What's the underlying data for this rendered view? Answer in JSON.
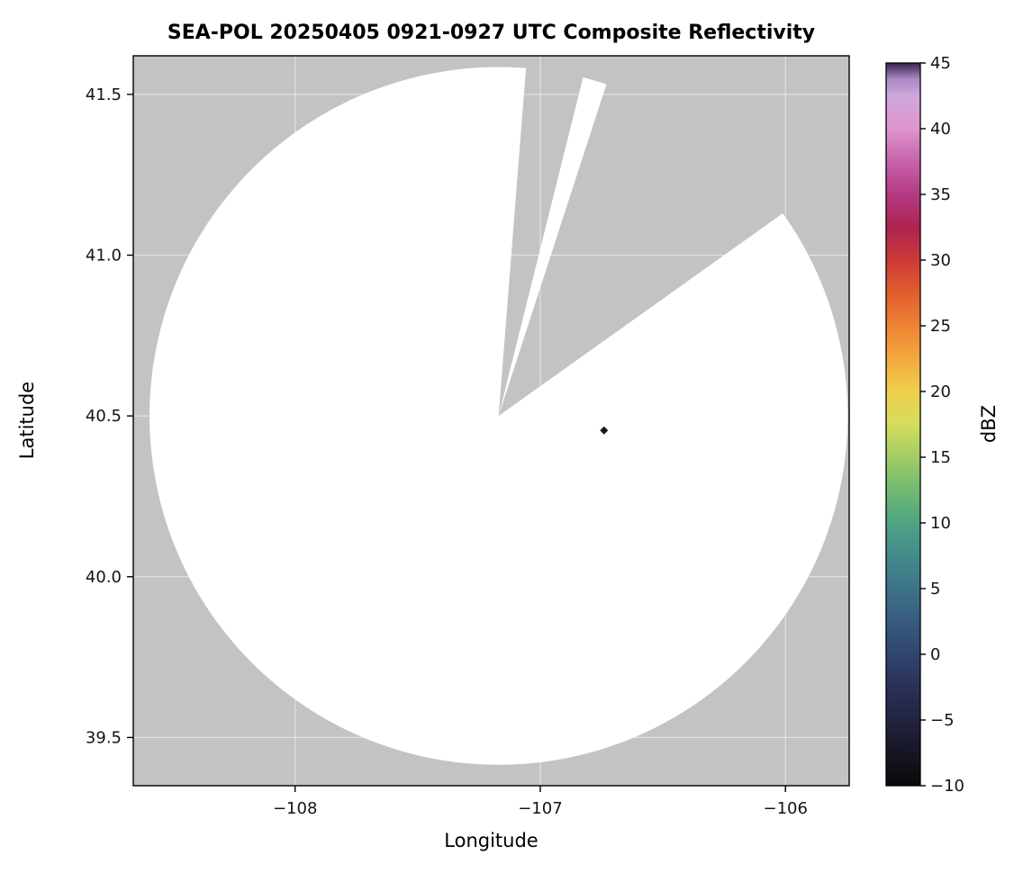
{
  "chart_data": {
    "type": "heatmap",
    "title": "SEA-POL 20250405 0921-0927 UTC Composite Reflectivity",
    "xlabel": "Longitude",
    "ylabel": "Latitude",
    "xlim": [
      -108.66,
      -105.74
    ],
    "ylim": [
      39.35,
      41.62
    ],
    "xticks": [
      {
        "value": -108,
        "label": "−108"
      },
      {
        "value": -107,
        "label": "−107"
      },
      {
        "value": -106,
        "label": "−106"
      }
    ],
    "yticks": [
      {
        "value": 39.5,
        "label": "39.5"
      },
      {
        "value": 40.0,
        "label": "40.0"
      },
      {
        "value": 40.5,
        "label": "40.5"
      },
      {
        "value": 41.0,
        "label": "41.0"
      },
      {
        "value": 41.5,
        "label": "41.5"
      }
    ],
    "grid": true,
    "colors": {
      "nodata_gray": "#c3c3c3",
      "coverage_white": "#ffffff",
      "spine_black": "#000000",
      "gridline": "#ffffff"
    },
    "radar_coverage": {
      "description": "White disk = SEA-POL radar scan coverage; gray = no data, including two blocked azimuth sectors cut into the disk",
      "center_lon": -107.17,
      "center_lat": 40.5,
      "radius_deg_lat": 1.085,
      "blocked_sectors_azimuth_deg": [
        {
          "start": 4.5,
          "end": 14
        },
        {
          "start": 18,
          "end": 54.5
        }
      ]
    },
    "echoes": [
      {
        "lon": -106.74,
        "lat": 40.455,
        "dbz": -6,
        "color": "#15151f",
        "shape": "diamond"
      }
    ],
    "colorbar": {
      "label": "dBZ",
      "min": -10,
      "max": 45,
      "ticks": [
        {
          "value": 45,
          "label": "45"
        },
        {
          "value": 40,
          "label": "40"
        },
        {
          "value": 35,
          "label": "35"
        },
        {
          "value": 30,
          "label": "30"
        },
        {
          "value": 25,
          "label": "25"
        },
        {
          "value": 20,
          "label": "20"
        },
        {
          "value": 15,
          "label": "15"
        },
        {
          "value": 10,
          "label": "10"
        },
        {
          "value": 5,
          "label": "5"
        },
        {
          "value": 0,
          "label": "0"
        },
        {
          "value": -5,
          "label": "−5"
        },
        {
          "value": -10,
          "label": "−10"
        }
      ],
      "stops": [
        {
          "value": -10,
          "color": "#09090b"
        },
        {
          "value": -7.5,
          "color": "#161623"
        },
        {
          "value": -5,
          "color": "#222340"
        },
        {
          "value": -2.5,
          "color": "#2a3158"
        },
        {
          "value": 0,
          "color": "#31456e"
        },
        {
          "value": 2.5,
          "color": "#375b7f"
        },
        {
          "value": 5,
          "color": "#3d7389"
        },
        {
          "value": 7.5,
          "color": "#438b8b"
        },
        {
          "value": 10,
          "color": "#4fa483"
        },
        {
          "value": 12.5,
          "color": "#71ba72"
        },
        {
          "value": 15,
          "color": "#a2cc65"
        },
        {
          "value": 17.5,
          "color": "#d4dd5c"
        },
        {
          "value": 20,
          "color": "#f0cf4c"
        },
        {
          "value": 22.5,
          "color": "#f3a93e"
        },
        {
          "value": 25,
          "color": "#ee8334"
        },
        {
          "value": 27.5,
          "color": "#e25d2e"
        },
        {
          "value": 30,
          "color": "#cc3a38"
        },
        {
          "value": 32.5,
          "color": "#ad2450"
        },
        {
          "value": 35,
          "color": "#b23a83"
        },
        {
          "value": 37.5,
          "color": "#c863ab"
        },
        {
          "value": 40,
          "color": "#dd95cc"
        },
        {
          "value": 42.5,
          "color": "#cfa7dd"
        },
        {
          "value": 43.8,
          "color": "#a887c4"
        },
        {
          "value": 45,
          "color": "#35234e"
        }
      ]
    }
  }
}
